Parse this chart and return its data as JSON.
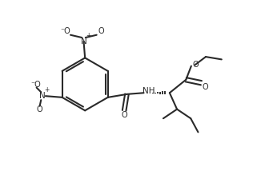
{
  "bg_color": "#ffffff",
  "line_color": "#2a2a2a",
  "line_width": 1.5,
  "figsize": [
    3.31,
    2.14
  ],
  "dpi": 100,
  "xlim": [
    0,
    10
  ],
  "ylim": [
    0,
    6.4
  ],
  "font_size": 7.0
}
